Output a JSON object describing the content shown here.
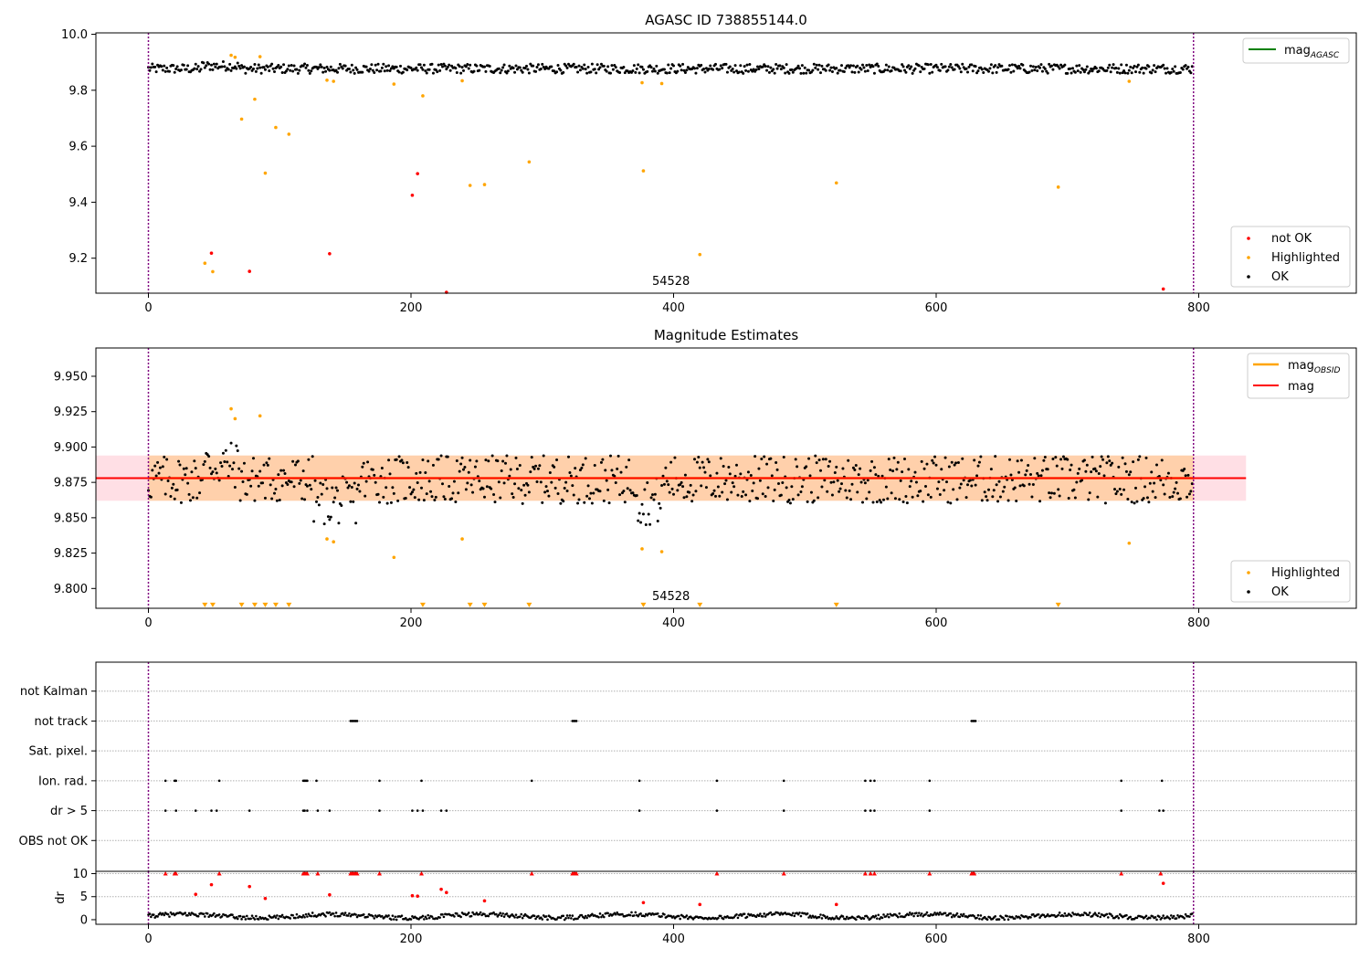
{
  "chart_data": [
    {
      "type": "scatter",
      "title": "AGASC ID 738855144.0",
      "xlim": [
        -40,
        920
      ],
      "ylim": [
        9.075,
        10.005
      ],
      "xticks": [
        0,
        200,
        400,
        600,
        800
      ],
      "yticks": [
        9.2,
        9.4,
        9.6,
        9.8,
        10.0
      ],
      "ytick_labels": [
        "9.2",
        "9.4",
        "9.6",
        "9.8",
        "10.0"
      ],
      "obsid_boundaries": [
        0,
        796
      ],
      "obsid_label": {
        "text": "54528",
        "x": 398
      },
      "legend_upper": {
        "placement": "top-right",
        "entries": [
          {
            "label": "mag",
            "subscript": "AGASC",
            "color": "#008000"
          }
        ]
      },
      "legend_lower": {
        "placement": "bottom-right",
        "entries": [
          {
            "label": "not OK",
            "color": "#ff0000"
          },
          {
            "label": "Highlighted",
            "color": "#ffa500"
          },
          {
            "label": "OK",
            "color": "#000000"
          }
        ]
      },
      "ok_band": {
        "center": 9.877,
        "spread": 0.017
      },
      "series": [
        {
          "name": "Highlighted",
          "color": "#ffa500",
          "points": [
            [
              43,
              9.182
            ],
            [
              49,
              9.152
            ],
            [
              63,
              9.925
            ],
            [
              66,
              9.918
            ],
            [
              71,
              9.697
            ],
            [
              81,
              9.768
            ],
            [
              85,
              9.92
            ],
            [
              89,
              9.504
            ],
            [
              97,
              9.667
            ],
            [
              107,
              9.643
            ],
            [
              136,
              9.836
            ],
            [
              141,
              9.832
            ],
            [
              187,
              9.822
            ],
            [
              209,
              9.78
            ],
            [
              239,
              9.834
            ],
            [
              245,
              9.46
            ],
            [
              256,
              9.463
            ],
            [
              290,
              9.544
            ],
            [
              376,
              9.827
            ],
            [
              377,
              9.512
            ],
            [
              391,
              9.824
            ],
            [
              420,
              9.213
            ],
            [
              524,
              9.469
            ],
            [
              693,
              9.454
            ],
            [
              747,
              9.832
            ]
          ]
        },
        {
          "name": "not OK",
          "color": "#ff0000",
          "points": [
            [
              48,
              9.218
            ],
            [
              77,
              9.153
            ],
            [
              138,
              9.216
            ],
            [
              201,
              9.425
            ],
            [
              205,
              9.502
            ],
            [
              227,
              9.078
            ],
            [
              773,
              9.09
            ]
          ]
        }
      ]
    },
    {
      "type": "scatter",
      "title": "Magnitude Estimates",
      "xlim": [
        -40,
        920
      ],
      "ylim": [
        9.786,
        9.97
      ],
      "xticks": [
        0,
        200,
        400,
        600,
        800
      ],
      "yticks": [
        9.8,
        9.825,
        9.85,
        9.875,
        9.9,
        9.925,
        9.95
      ],
      "ytick_labels": [
        "9.800",
        "9.825",
        "9.850",
        "9.875",
        "9.900",
        "9.925",
        "9.950"
      ],
      "obsid_boundaries": [
        0,
        796
      ],
      "obsid_label": {
        "text": "54528",
        "x": 398
      },
      "legend_upper": {
        "placement": "top-right",
        "entries": [
          {
            "label": "mag",
            "subscript": "OBSID",
            "color": "#ffa500"
          },
          {
            "label": "mag",
            "color": "#ff0000"
          }
        ]
      },
      "legend_lower": {
        "placement": "bottom-right",
        "entries": [
          {
            "label": "Highlighted",
            "color": "#ffa500"
          },
          {
            "label": "OK",
            "color": "#000000"
          }
        ]
      },
      "mag_mean": 9.878,
      "mag_band": [
        9.862,
        9.894
      ],
      "mag_range_x": [
        -40,
        836
      ],
      "obsid_band": [
        9.862,
        9.894
      ],
      "obsid_range_x": [
        0,
        796
      ],
      "obsid_mean": 9.878,
      "ok_band": {
        "center": 9.877,
        "spread": 0.017
      },
      "series": [
        {
          "name": "Highlighted",
          "color": "#ffa500",
          "points": [
            [
              63,
              9.927
            ],
            [
              66,
              9.92
            ],
            [
              85,
              9.922
            ],
            [
              136,
              9.835
            ],
            [
              141,
              9.833
            ],
            [
              187,
              9.822
            ],
            [
              239,
              9.835
            ],
            [
              376,
              9.828
            ],
            [
              391,
              9.826
            ],
            [
              747,
              9.832
            ]
          ]
        },
        {
          "name": "Highlighted",
          "color": "#ffa500",
          "marker": "triangle-down",
          "points": [
            [
              43,
              9.788
            ],
            [
              49,
              9.788
            ],
            [
              71,
              9.788
            ],
            [
              81,
              9.788
            ],
            [
              89,
              9.788
            ],
            [
              97,
              9.788
            ],
            [
              107,
              9.788
            ],
            [
              209,
              9.788
            ],
            [
              245,
              9.788
            ],
            [
              256,
              9.788
            ],
            [
              290,
              9.788
            ],
            [
              377,
              9.788
            ],
            [
              420,
              9.788
            ],
            [
              524,
              9.788
            ],
            [
              693,
              9.788
            ]
          ]
        }
      ]
    },
    {
      "type": "scatter",
      "title": "",
      "xlim": [
        -40,
        920
      ],
      "xticks": [
        0,
        200,
        400,
        600,
        800
      ],
      "obsid_boundaries": [
        0,
        796
      ],
      "category_labels": [
        "not Kalman",
        "not track",
        "Sat. pixel.",
        "Ion. rad.",
        "dr > 5",
        "OBS not OK"
      ],
      "flags": {
        "not Kalman": [],
        "not track": [
          154,
          155,
          156,
          157,
          158,
          159,
          323,
          324,
          325,
          326,
          627,
          628,
          629,
          630
        ],
        "Sat. pixel.": [],
        "Ion. rad.": [
          13,
          20,
          21,
          54,
          118,
          119,
          120,
          121,
          128,
          176,
          208,
          292,
          374,
          433,
          484,
          546,
          550,
          553,
          595,
          741,
          772
        ],
        "dr > 5": [
          13,
          21,
          36,
          48,
          52,
          77,
          118,
          119,
          121,
          129,
          138,
          176,
          201,
          205,
          209,
          223,
          227,
          374,
          433,
          484,
          546,
          550,
          553,
          595,
          741,
          770,
          773
        ],
        "OBS not OK": []
      }
    },
    {
      "type": "scatter",
      "title": "",
      "ylabel": "dr",
      "xlim": [
        -40,
        920
      ],
      "ylim": [
        -1,
        10.5
      ],
      "xticks": [
        0,
        200,
        400,
        600,
        800
      ],
      "yticks": [
        0,
        5,
        10
      ],
      "ytick_labels": [
        "0",
        "5",
        "10"
      ],
      "obsid_boundaries": [
        0,
        796
      ],
      "series": [
        {
          "name": "not OK",
          "color": "#ff0000",
          "points": [
            [
              36,
              5.5
            ],
            [
              48,
              7.6
            ],
            [
              77,
              7.2
            ],
            [
              89,
              4.6
            ],
            [
              138,
              5.4
            ],
            [
              201,
              5.2
            ],
            [
              205,
              5.1
            ],
            [
              223,
              6.6
            ],
            [
              227,
              5.9
            ],
            [
              256,
              4.1
            ],
            [
              377,
              3.7
            ],
            [
              420,
              3.3
            ],
            [
              524,
              3.3
            ],
            [
              773,
              7.9
            ]
          ]
        },
        {
          "name": "not OK",
          "color": "#ff0000",
          "marker": "triangle-up",
          "points": [
            [
              13,
              10
            ],
            [
              20,
              10
            ],
            [
              21,
              10
            ],
            [
              54,
              10
            ],
            [
              118,
              10
            ],
            [
              119,
              10
            ],
            [
              120,
              10
            ],
            [
              121,
              10
            ],
            [
              129,
              10
            ],
            [
              154,
              10
            ],
            [
              155,
              10
            ],
            [
              156,
              10
            ],
            [
              157,
              10
            ],
            [
              158,
              10
            ],
            [
              159,
              10
            ],
            [
              176,
              10
            ],
            [
              208,
              10
            ],
            [
              292,
              10
            ],
            [
              323,
              10
            ],
            [
              324,
              10
            ],
            [
              325,
              10
            ],
            [
              326,
              10
            ],
            [
              433,
              10
            ],
            [
              484,
              10
            ],
            [
              546,
              10
            ],
            [
              550,
              10
            ],
            [
              553,
              10
            ],
            [
              595,
              10
            ],
            [
              627,
              10
            ],
            [
              628,
              10
            ],
            [
              629,
              10
            ],
            [
              741,
              10
            ],
            [
              771,
              10
            ]
          ]
        }
      ]
    }
  ]
}
